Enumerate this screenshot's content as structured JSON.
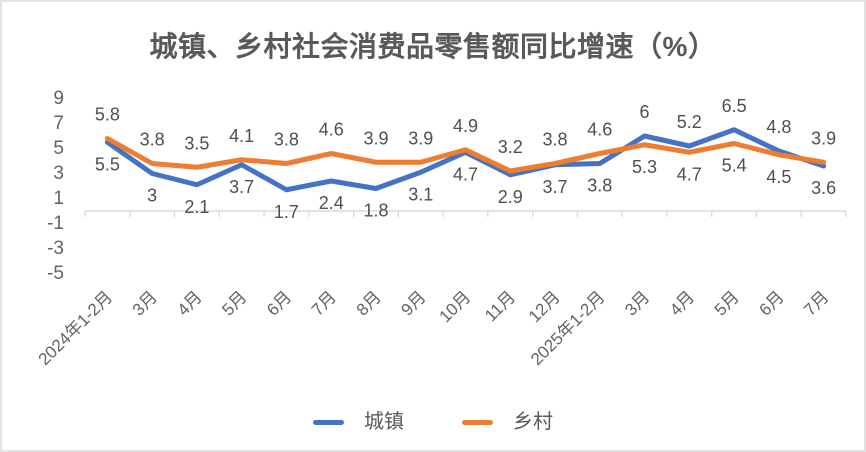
{
  "title": "城镇、乡村社会消费品零售额同比增速（%）",
  "chart_data": {
    "type": "line",
    "title": "城镇、乡村社会消费品零售额同比增速（%）",
    "categories": [
      "2024年1-2月",
      "3月",
      "4月",
      "5月",
      "6月",
      "7月",
      "8月",
      "9月",
      "10月",
      "11月",
      "12月",
      "2025年1-2月",
      "3月",
      "4月",
      "5月",
      "6月",
      "7月"
    ],
    "series": [
      {
        "id": "urban",
        "name": "城镇",
        "color": "#4472C4",
        "values": [
          5.5,
          3,
          2.1,
          3.7,
          1.7,
          2.4,
          1.8,
          3.1,
          4.7,
          2.9,
          3.7,
          3.8,
          6,
          5.2,
          6.5,
          4.8,
          3.6
        ]
      },
      {
        "id": "rural",
        "name": "乡村",
        "color": "#ED7D31",
        "values": [
          5.8,
          3.8,
          3.5,
          4.1,
          3.8,
          4.6,
          3.9,
          3.9,
          4.9,
          3.2,
          3.8,
          4.6,
          5.3,
          4.7,
          5.4,
          4.5,
          3.9
        ]
      }
    ],
    "xlabel": "",
    "ylabel": "",
    "yticks": [
      9,
      7,
      5,
      3,
      1,
      -1,
      -3,
      -5
    ],
    "ylim": [
      -5,
      9.4
    ],
    "grid": false,
    "data_labels": true,
    "legend_position": "bottom"
  },
  "legend": {
    "items": [
      {
        "label": "城镇",
        "color": "#4472C4"
      },
      {
        "label": "乡村",
        "color": "#ED7D31"
      }
    ]
  },
  "colors": {
    "axis_line": "#D9D9D9",
    "axis_text": "#636363",
    "data_label_text": "#4f4f4f",
    "title_text": "#595959"
  }
}
